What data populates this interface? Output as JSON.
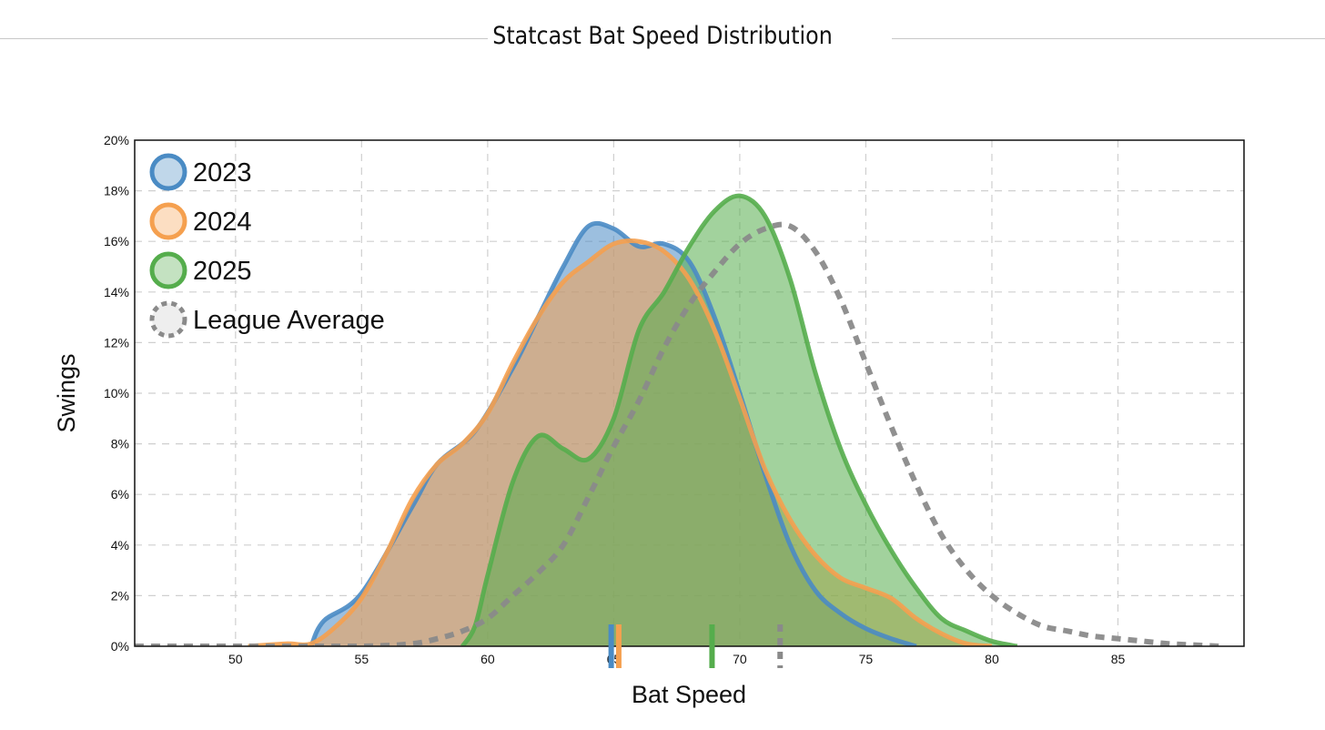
{
  "title": "Statcast Bat Speed Distribution",
  "colors": {
    "2023": "#4a8bc4",
    "2024": "#f5a04f",
    "2025": "#55ad4c",
    "league": "#8a8a8a"
  },
  "chart_data": {
    "type": "area",
    "title": "Statcast Bat Speed Distribution",
    "xlabel": "Bat Speed",
    "ylabel": "Swings",
    "xlim": [
      46,
      90
    ],
    "ylim": [
      0,
      20
    ],
    "x_ticks": [
      50,
      55,
      60,
      65,
      70,
      75,
      80,
      85
    ],
    "x_tick_labels": [
      "50",
      "55",
      "60",
      "65",
      "70",
      "75",
      "80",
      "85"
    ],
    "y_ticks": [
      0,
      2,
      4,
      6,
      8,
      10,
      12,
      14,
      16,
      18,
      20
    ],
    "y_tick_labels": [
      "0%",
      "2%",
      "4%",
      "6%",
      "8%",
      "10%",
      "12%",
      "14%",
      "16%",
      "18%",
      "20%"
    ],
    "grid": true,
    "legend_position": "top-left",
    "series": [
      {
        "name": "2023",
        "color": "#4a8bc4",
        "mean": 64.9,
        "points": [
          [
            53,
            0
          ],
          [
            53.5,
            1
          ],
          [
            55,
            2.1
          ],
          [
            57,
            5.5
          ],
          [
            58,
            7.2
          ],
          [
            59.5,
            8.5
          ],
          [
            61,
            11
          ],
          [
            62,
            13
          ],
          [
            63,
            15
          ],
          [
            64,
            16.6
          ],
          [
            65,
            16.5
          ],
          [
            66,
            15.8
          ],
          [
            67,
            15.9
          ],
          [
            68,
            15.2
          ],
          [
            69,
            13
          ],
          [
            70,
            10
          ],
          [
            71,
            6.8
          ],
          [
            72,
            4
          ],
          [
            73,
            2.2
          ],
          [
            74,
            1.3
          ],
          [
            75,
            0.7
          ],
          [
            76,
            0.3
          ],
          [
            77,
            0
          ]
        ]
      },
      {
        "name": "2024",
        "color": "#f5a04f",
        "mean": 65.2,
        "points": [
          [
            50.5,
            0
          ],
          [
            52,
            0.1
          ],
          [
            53,
            0.1
          ],
          [
            54,
            0.8
          ],
          [
            55,
            1.9
          ],
          [
            56,
            3.7
          ],
          [
            57,
            5.8
          ],
          [
            58,
            7.2
          ],
          [
            59,
            8
          ],
          [
            60,
            9.2
          ],
          [
            61,
            11.2
          ],
          [
            62,
            13
          ],
          [
            63,
            14.4
          ],
          [
            64,
            15.2
          ],
          [
            65,
            15.9
          ],
          [
            66,
            16
          ],
          [
            67,
            15.6
          ],
          [
            68,
            14.5
          ],
          [
            69,
            12.5
          ],
          [
            70,
            9.8
          ],
          [
            71,
            7
          ],
          [
            72,
            5
          ],
          [
            73,
            3.6
          ],
          [
            74,
            2.7
          ],
          [
            75,
            2.3
          ],
          [
            76,
            1.9
          ],
          [
            77,
            1.1
          ],
          [
            78,
            0.5
          ],
          [
            79,
            0.1
          ],
          [
            80,
            0
          ]
        ]
      },
      {
        "name": "2025",
        "color": "#55ad4c",
        "mean": 68.9,
        "points": [
          [
            59,
            0
          ],
          [
            59.5,
            0.8
          ],
          [
            60,
            2.8
          ],
          [
            61,
            6.5
          ],
          [
            62,
            8.3
          ],
          [
            63,
            7.8
          ],
          [
            64,
            7.4
          ],
          [
            65,
            9
          ],
          [
            66,
            12.5
          ],
          [
            67,
            14
          ],
          [
            68,
            15.8
          ],
          [
            69,
            17.2
          ],
          [
            70,
            17.8
          ],
          [
            71,
            17
          ],
          [
            72,
            14.5
          ],
          [
            73,
            10.8
          ],
          [
            74,
            7.8
          ],
          [
            75,
            5.6
          ],
          [
            76,
            3.8
          ],
          [
            77,
            2.3
          ],
          [
            78,
            1.1
          ],
          [
            79,
            0.6
          ],
          [
            80,
            0.2
          ],
          [
            81,
            0
          ]
        ]
      },
      {
        "name": "League Average",
        "color": "#8a8a8a",
        "style": "dashed",
        "mean": 71.6,
        "points": [
          [
            46,
            0
          ],
          [
            50,
            0
          ],
          [
            55,
            0
          ],
          [
            57,
            0.1
          ],
          [
            58,
            0.3
          ],
          [
            59,
            0.6
          ],
          [
            60,
            1.1
          ],
          [
            61,
            2
          ],
          [
            62,
            2.9
          ],
          [
            63,
            4
          ],
          [
            64,
            5.9
          ],
          [
            65,
            7.9
          ],
          [
            66,
            9.7
          ],
          [
            67,
            11.8
          ],
          [
            68,
            13.5
          ],
          [
            69,
            14.8
          ],
          [
            70,
            15.9
          ],
          [
            71,
            16.5
          ],
          [
            72,
            16.6
          ],
          [
            73,
            15.6
          ],
          [
            74,
            13.7
          ],
          [
            75,
            11.2
          ],
          [
            76,
            8.7
          ],
          [
            77,
            6.4
          ],
          [
            78,
            4.4
          ],
          [
            79,
            3
          ],
          [
            80,
            2
          ],
          [
            81,
            1.3
          ],
          [
            82,
            0.8
          ],
          [
            83,
            0.6
          ],
          [
            84,
            0.4
          ],
          [
            85,
            0.3
          ],
          [
            86,
            0.2
          ],
          [
            87,
            0.1
          ],
          [
            88,
            0.05
          ],
          [
            89,
            0
          ]
        ]
      }
    ]
  }
}
